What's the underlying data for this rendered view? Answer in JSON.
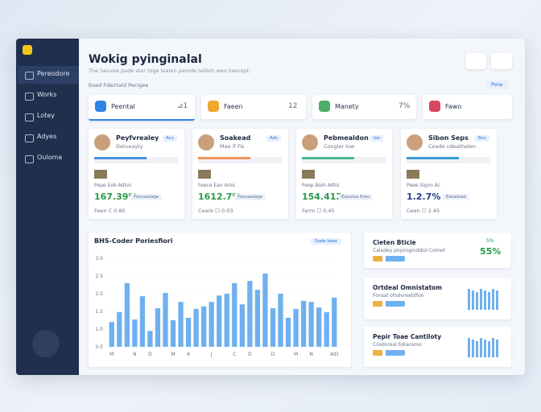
{
  "sidebar": {
    "items": [
      "Pereodore",
      "Works",
      "Lotey",
      "Adyes",
      "Ouloma"
    ]
  },
  "header": {
    "title": "Wokig pyinginalal",
    "subtitle": "The Sevvee pade ster toge lealen pemde tellieh weo lreeropt."
  },
  "section": {
    "label": "Eoed Fdeirtald Pecigee",
    "button": "Pone"
  },
  "filters": [
    {
      "label": "Peental",
      "value": "⊿1"
    },
    {
      "label": "Faeen",
      "value": "12"
    },
    {
      "label": "Manety",
      "value": "7%"
    },
    {
      "label": "Fawo",
      "value": ""
    }
  ],
  "people": [
    {
      "name": "Peyfvrealey",
      "role": "Detveayty",
      "tag": "Acs",
      "line": "Pepe Eeb Adtvs",
      "value": "167.39%",
      "badge": "Peosealage",
      "footer": "Feen ℂ 0.85"
    },
    {
      "name": "Soakead",
      "role": "Mae if Fis",
      "tag": "Ads",
      "line": "Feece Ean Aros",
      "value": "1612.7%",
      "badge": "Peosealage",
      "footer": "Ceare ☐ 0.03"
    },
    {
      "name": "Pebmealdon",
      "role": "Coogler low",
      "tag": "Ios",
      "line": "Peep Bieh Adtis",
      "value": "154.412",
      "badge": "Easolaa Ereo",
      "footer": "Ferm ☐ 0.45"
    },
    {
      "name": "Sibon Seps",
      "role": "Ceade cdeathalen",
      "tag": "Bcs",
      "line": "Peee Slgvo Ac",
      "value": "1.2.7%",
      "badge": "Eeoaleae",
      "footer": "Ceen ☐ 2.45"
    }
  ],
  "chart_data": {
    "type": "bar",
    "title": "BHS-Coder Poriesfiori",
    "button": "Sode boer",
    "color": "#6fb0ef",
    "categories": [
      "M",
      null,
      null,
      "N",
      null,
      "D",
      null,
      null,
      "M",
      null,
      "A",
      null,
      null,
      "J",
      null,
      null,
      "C",
      null,
      "D",
      null,
      null,
      "D",
      null,
      null,
      "M",
      null,
      "N",
      null,
      null,
      "AID"
    ],
    "values": [
      1.2,
      1.48,
      2.3,
      1.27,
      1.93,
      0.95,
      1.59,
      2.02,
      1.25,
      1.77,
      1.32,
      1.57,
      1.64,
      1.77,
      1.95,
      2.0,
      2.3,
      1.7,
      2.36,
      2.11,
      2.57,
      1.59,
      2.0,
      1.32,
      1.57,
      1.8,
      1.77,
      1.61,
      1.48,
      1.89
    ],
    "ylim": [
      0.5,
      3.0
    ],
    "yticks": [
      {
        "value": 3.0,
        "label": "3.0"
      },
      {
        "value": 2.5,
        "label": "2.5"
      },
      {
        "value": 2.0,
        "label": "2.0"
      },
      {
        "value": 1.5,
        "label": "1.5"
      },
      {
        "value": 1.0,
        "label": "1.0"
      },
      {
        "value": 0.5,
        "label": "0.5"
      }
    ]
  },
  "panels": [
    {
      "title": "Cieten Bticie",
      "subtitle": "Caladey poysnginddiol Comet",
      "value": "55%",
      "note": "5%"
    },
    {
      "title": "Ortdeal Omnistatom",
      "subtitle": "Fonsal ofodvreatitfon"
    },
    {
      "title": "Pepir Toae Cantiloty",
      "subtitle": "Cosdoreal tokaceres"
    }
  ]
}
